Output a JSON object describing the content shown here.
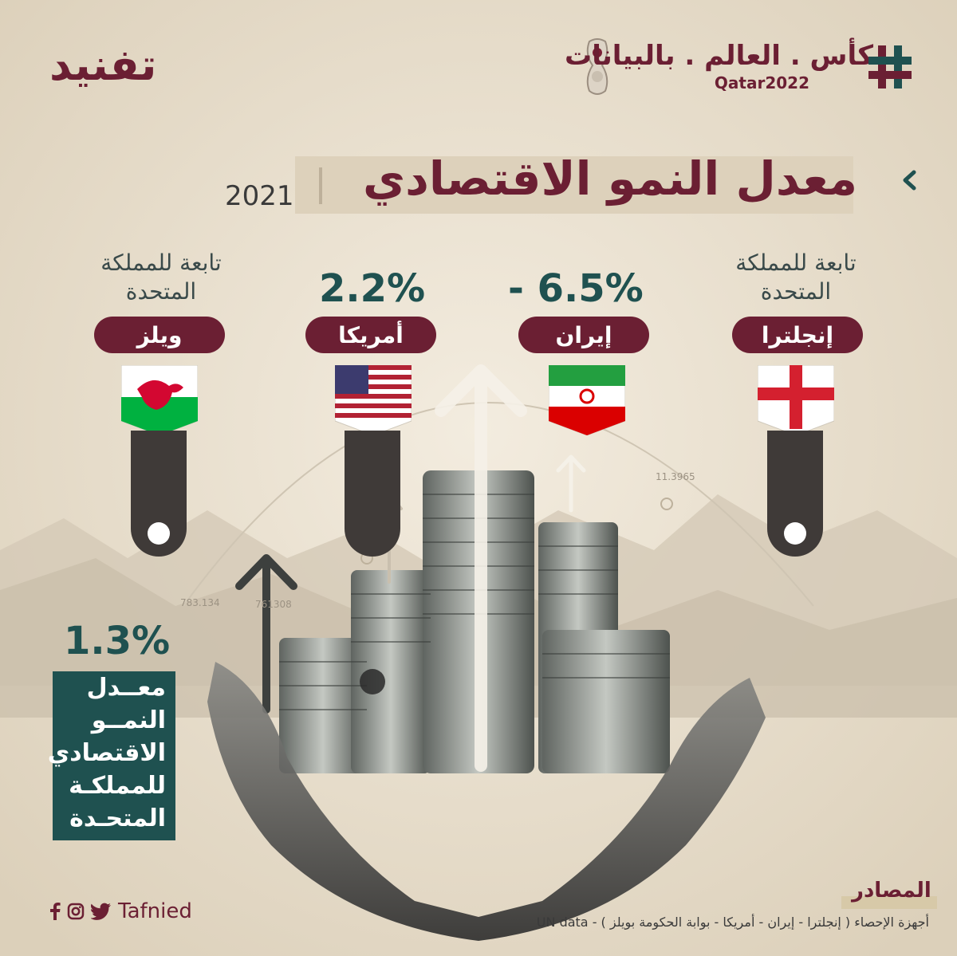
{
  "header": {
    "brand": "تفنيد",
    "series_title": "كأس . العالم . بالبيانات",
    "event": "Qatar2022"
  },
  "title": "معدل النمو الاقتصادي",
  "year": "2021",
  "countries": [
    {
      "name": "إنجلترا",
      "note": "تابعة للمملكة المتحدة",
      "value": ""
    },
    {
      "name": "إيران",
      "note": "",
      "value": "- 6.5%"
    },
    {
      "name": "أمريكا",
      "note": "",
      "value": "2.2%"
    },
    {
      "name": "ويلز",
      "note": "تابعة للمملكة المتحدة",
      "value": ""
    }
  ],
  "uk": {
    "value": "1.3%",
    "lines": [
      "معــدل",
      "النمــو",
      "الاقتصادي",
      "للمملكـة",
      "المتحـدة"
    ]
  },
  "sources": {
    "title": "المصادر",
    "text": "أجهزة الإحصاء ( إنجلترا - إيران - أمريكا - بوابة الحكومة بويلز ) - UN data"
  },
  "social": {
    "handle": "Tafnied",
    "icons": [
      "twitter-icon",
      "instagram-icon",
      "facebook-icon"
    ]
  },
  "colors": {
    "maroon": "#6b1f33",
    "teal": "#1f5150",
    "background": "#ece3d2"
  }
}
